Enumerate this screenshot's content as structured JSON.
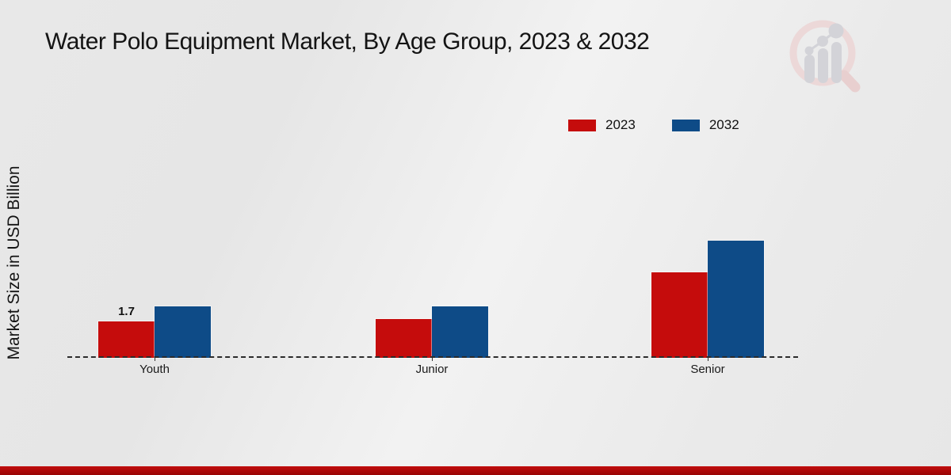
{
  "title": "Water Polo Equipment Market, By Age Group, 2023 & 2032",
  "y_axis_label": "Market Size in USD Billion",
  "legend": [
    {
      "label": "2023",
      "color": "#c50c0c"
    },
    {
      "label": "2032",
      "color": "#0e4b87"
    }
  ],
  "chart_data": {
    "type": "bar",
    "title": "Water Polo Equipment Market, By Age Group, 2023 & 2032",
    "categories": [
      "Youth",
      "Junior",
      "Senior"
    ],
    "series": [
      {
        "name": "2023",
        "color": "#c50c0c",
        "values": [
          1.7,
          1.8,
          4.0
        ]
      },
      {
        "name": "2032",
        "color": "#0e4b87",
        "values": [
          2.4,
          2.4,
          5.5
        ]
      }
    ],
    "xlabel": "",
    "ylabel": "Market Size in USD Billion",
    "ylim": [
      0,
      6
    ],
    "grid": false,
    "legend_position": "top-right",
    "bar_labels": [
      {
        "series": "2023",
        "category": "Youth",
        "text": "1.7"
      }
    ],
    "baseline_style": "dashed"
  },
  "watermark": {
    "icon": "market-research-future-logo"
  },
  "colors": {
    "background": "#e9e9e9",
    "bottom_stripe": "#b20909",
    "baseline": "#2b2b2b",
    "text": "#141414"
  }
}
